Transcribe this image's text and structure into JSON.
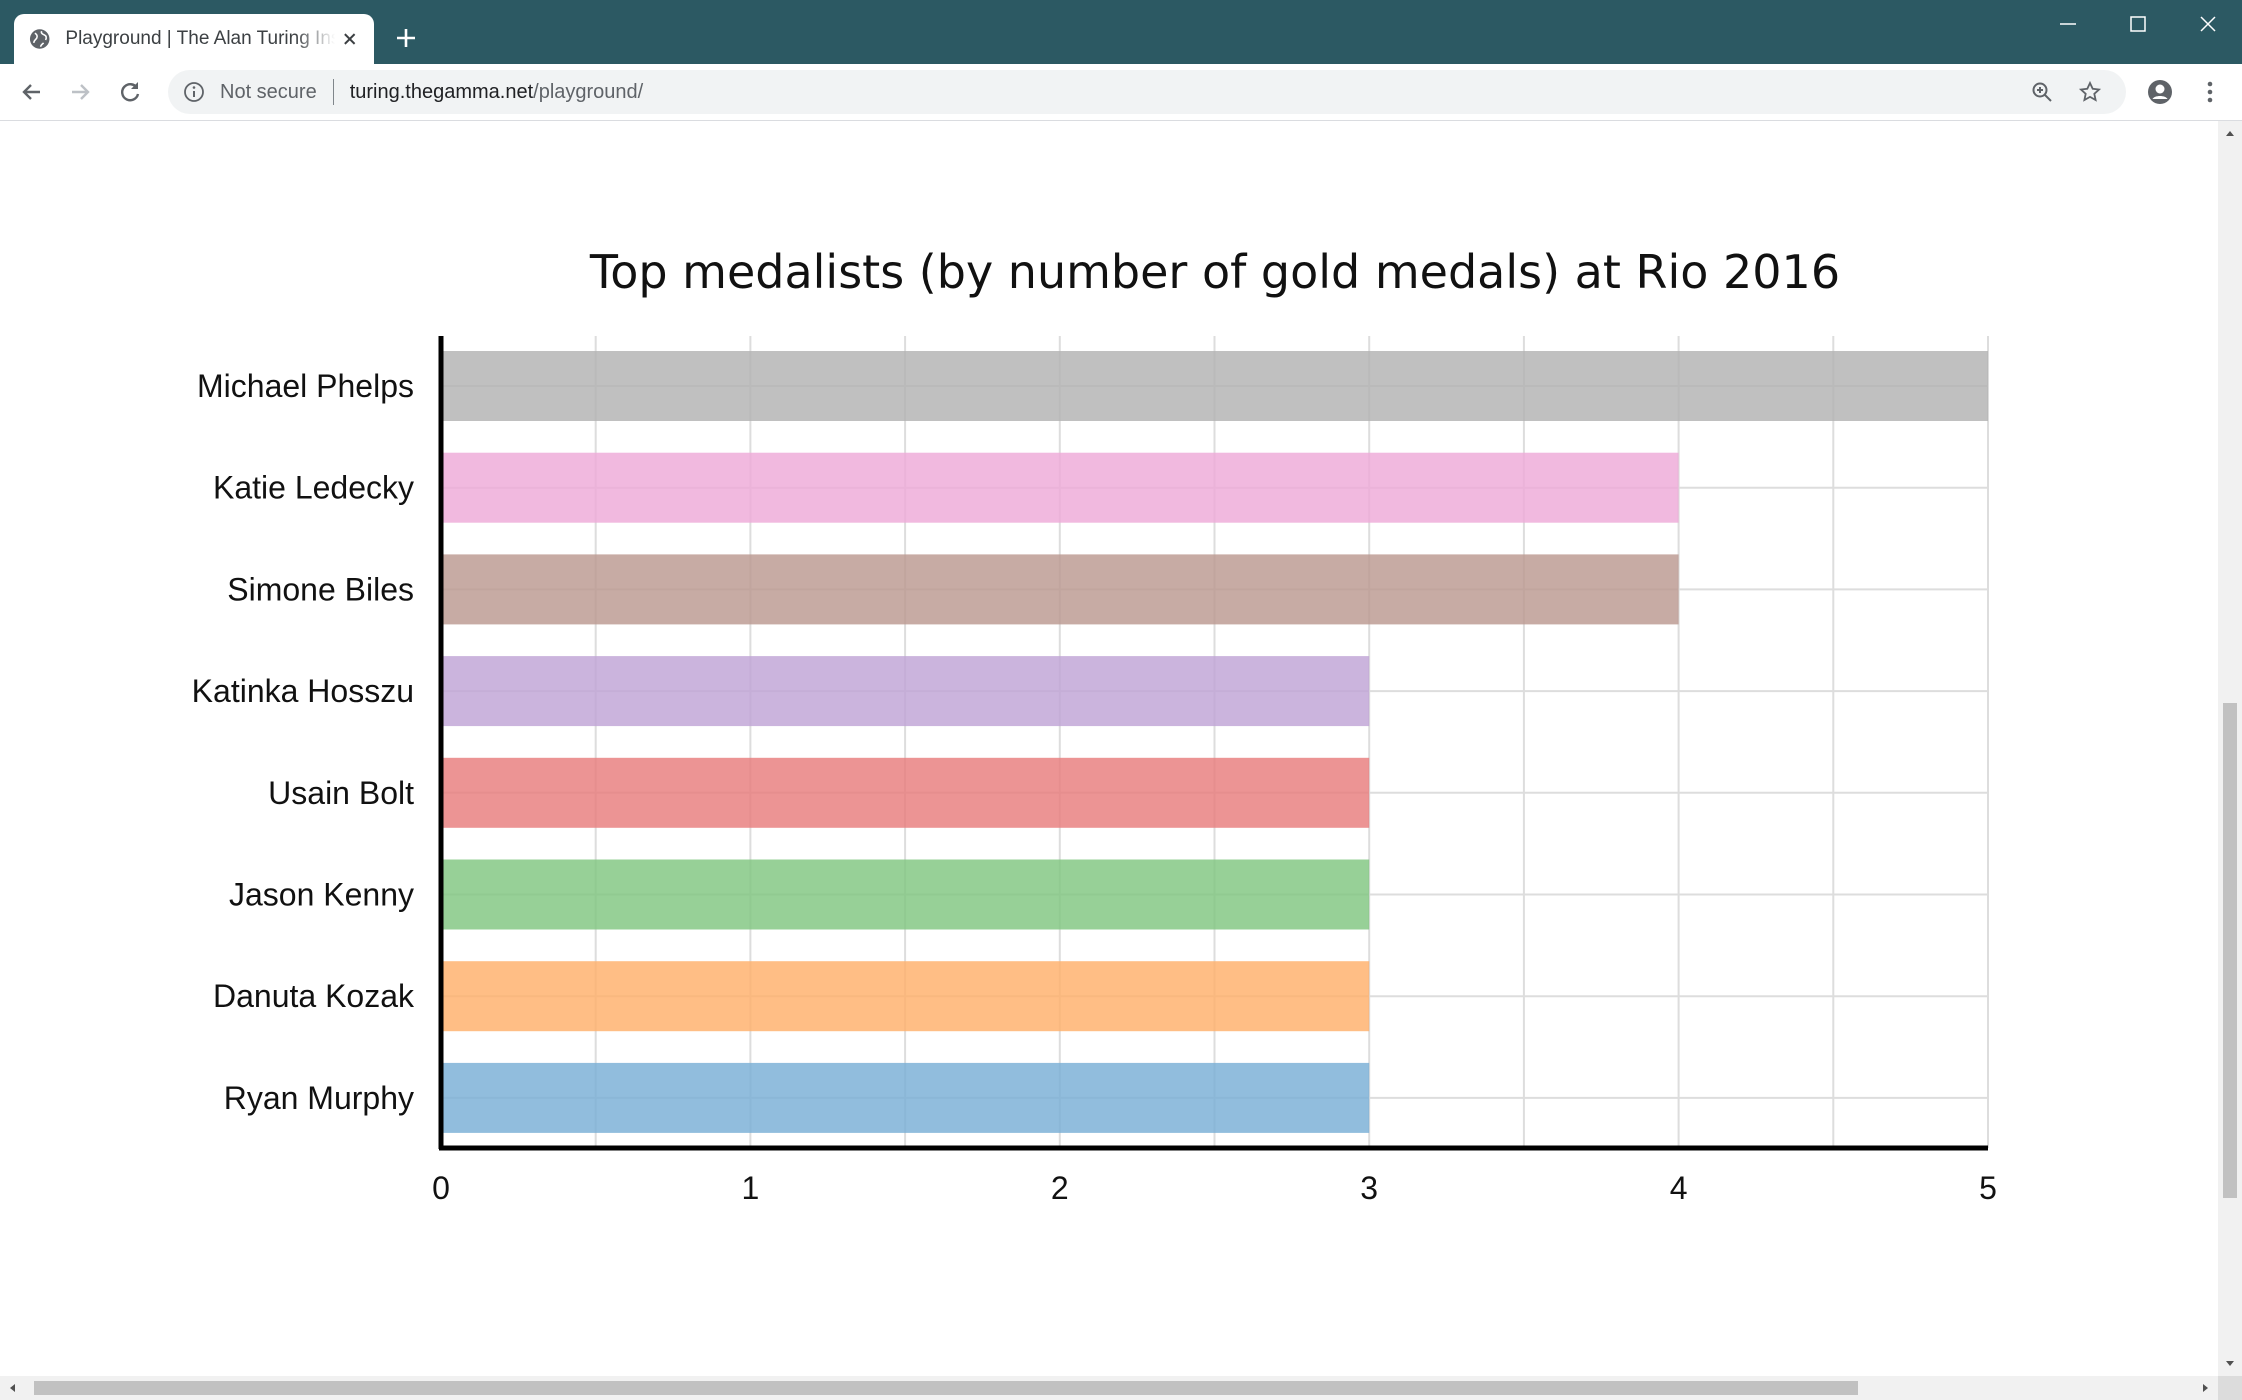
{
  "browser": {
    "tab_title": "Playground | The Alan Turing Institute",
    "security_label": "Not secure",
    "url_host": "turing.thegamma.net",
    "url_path": "/playground/"
  },
  "chart_data": {
    "type": "bar",
    "orientation": "horizontal",
    "title": "Top medalists (by number of gold medals) at Rio 2016",
    "xlabel": "",
    "ylabel": "",
    "xlim": [
      0,
      5
    ],
    "x_ticks": [
      0,
      1,
      2,
      3,
      4,
      5
    ],
    "grid": true,
    "legend": "none",
    "categories": [
      "Michael Phelps",
      "Katie Ledecky",
      "Simone Biles",
      "Katinka Hosszu",
      "Usain Bolt",
      "Jason Kenny",
      "Danuta Kozak",
      "Ryan Murphy"
    ],
    "values": [
      5,
      4,
      4,
      3,
      3,
      3,
      3,
      3
    ],
    "colors": [
      "#b2b2b2",
      "#eeaad8",
      "#bb9890",
      "#bfa3d6",
      "#e87c7c",
      "#80c680",
      "#ffb06a",
      "#79aed5"
    ]
  }
}
